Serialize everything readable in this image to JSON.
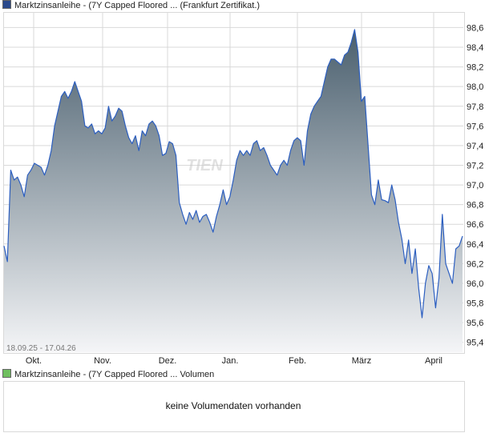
{
  "header": {
    "legend_price": "Marktzinsanleihe - (7Y Capped Floored ... (Frankfurt Zertifikat.)",
    "legend_volume": "Marktzinsanleihe - (7Y Capped Floored ... Volumen",
    "date_range": "18.09.25 - 17.04.26",
    "watermark": "TIEN",
    "no_volume": "keine Volumendaten vorhanden"
  },
  "colors": {
    "price_swatch": "#2b4a8c",
    "volume_swatch": "#6fbf5f",
    "line": "#2b5ec0",
    "fill_top": "#4a5f6e",
    "fill_bottom": "#f4f5f7",
    "grid": "#d9d9d9"
  },
  "chart_data": {
    "type": "area",
    "x_ticks": [
      "Okt.",
      "Nov.",
      "Dez.",
      "Jan.",
      "Feb.",
      "März",
      "April"
    ],
    "y_ticks": [
      "98,6",
      "98,4",
      "98,2",
      "98,0",
      "97,8",
      "97,6",
      "97,4",
      "97,2",
      "97,0",
      "96,8",
      "96,6",
      "96,4",
      "96,2",
      "96,0",
      "95,8",
      "95,6",
      "95,4"
    ],
    "ylim": [
      95.3,
      98.75
    ],
    "grid": true,
    "series": [
      {
        "values": [
          96.38,
          96.22,
          97.15,
          97.05,
          97.08,
          97.0,
          96.88,
          97.1,
          97.15,
          97.22,
          97.2,
          97.18,
          97.1,
          97.2,
          97.35,
          97.6,
          97.75,
          97.9,
          97.95,
          97.88,
          97.95,
          98.05,
          97.95,
          97.85,
          97.6,
          97.58,
          97.62,
          97.52,
          97.55,
          97.52,
          97.58,
          97.8,
          97.65,
          97.7,
          97.78,
          97.75,
          97.6,
          97.48,
          97.42,
          97.5,
          97.35,
          97.55,
          97.5,
          97.62,
          97.65,
          97.6,
          97.5,
          97.3,
          97.32,
          97.44,
          97.42,
          97.3,
          96.82,
          96.7,
          96.6,
          96.72,
          96.65,
          96.74,
          96.62,
          96.68,
          96.7,
          96.62,
          96.52,
          96.68,
          96.8,
          96.95,
          96.8,
          96.88,
          97.05,
          97.25,
          97.35,
          97.3,
          97.35,
          97.3,
          97.42,
          97.45,
          97.35,
          97.38,
          97.3,
          97.2,
          97.15,
          97.1,
          97.2,
          97.25,
          97.2,
          97.35,
          97.45,
          97.48,
          97.45,
          97.2,
          97.55,
          97.72,
          97.8,
          97.85,
          97.9,
          98.05,
          98.2,
          98.28,
          98.28,
          98.25,
          98.22,
          98.32,
          98.35,
          98.45,
          98.58,
          98.35,
          97.85,
          97.9,
          97.4,
          96.9,
          96.8,
          97.05,
          96.85,
          96.84,
          96.82,
          97.0,
          96.85,
          96.62,
          96.45,
          96.2,
          96.44,
          96.1,
          96.35,
          95.95,
          95.65,
          96.0,
          96.18,
          96.1,
          95.75,
          96.05,
          96.7,
          96.2,
          96.1,
          96.0,
          96.35,
          96.38,
          96.48
        ]
      }
    ]
  }
}
